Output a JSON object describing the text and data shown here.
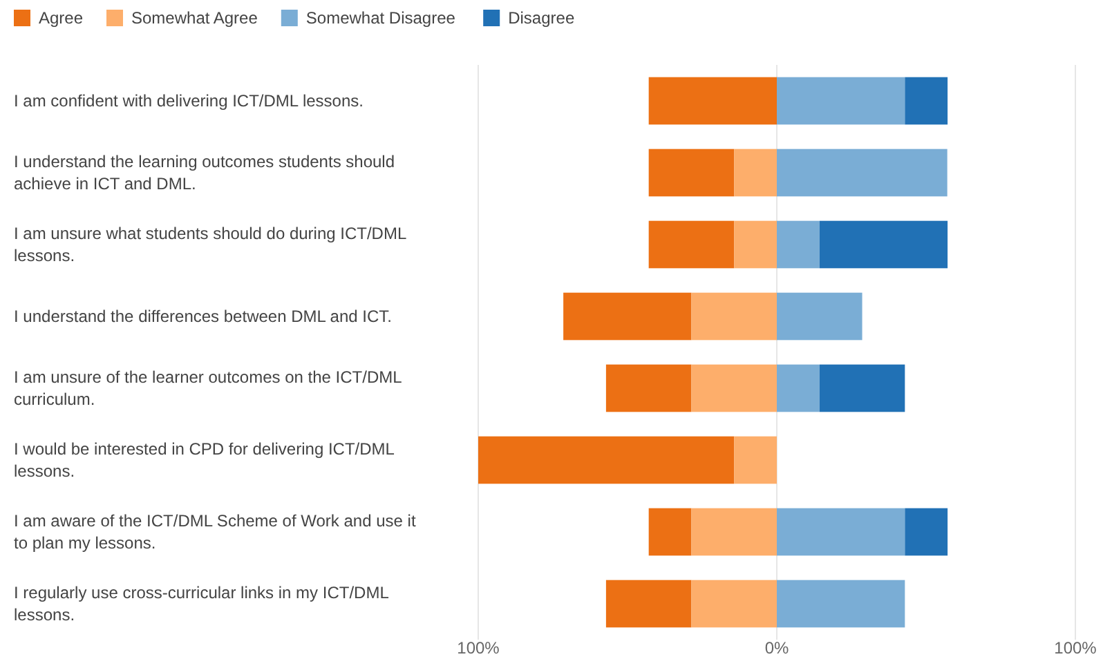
{
  "chart_data": {
    "type": "bar",
    "orientation": "horizontal",
    "categories": [
      "I am confident with delivering ICT/DML lessons.",
      "I understand the learning outcomes students should achieve in ICT and DML.",
      "I am unsure what students should do during ICT/DML lessons.",
      "I understand the differences between DML and ICT.",
      "I am unsure of the learner outcomes on the ICT/DML curriculum.",
      "I would be interested in CPD for delivering ICT/DML lessons.",
      "I am aware of the ICT/DML Scheme of Work and use it to plan my lessons.",
      "I regularly use cross-curricular links in my ICT/DML lessons."
    ],
    "series": [
      {
        "name": "Agree",
        "color": "#ec7014",
        "values": [
          42.9,
          28.6,
          28.6,
          42.9,
          28.6,
          85.7,
          14.3,
          28.6
        ],
        "base": [
          -42.9,
          -42.9,
          -42.9,
          -71.5,
          -57.2,
          -100,
          -42.9,
          -57.2
        ]
      },
      {
        "name": "Somewhat Agree",
        "color": "#fdae6b",
        "values": [
          null,
          14.3,
          14.3,
          28.6,
          28.6,
          14.3,
          28.6,
          28.6
        ],
        "base": [
          null,
          -14.3,
          -14.3,
          -28.6,
          -28.6,
          -14.3,
          -28.6,
          -28.6
        ]
      },
      {
        "name": "Somewhat Disagree",
        "color": "#7aadd5",
        "values": [
          42.9,
          57.1,
          14.3,
          28.6,
          14.3,
          null,
          42.9,
          42.9
        ],
        "base": [
          0,
          0,
          0,
          0,
          0,
          null,
          0,
          0
        ]
      },
      {
        "name": "Disagree",
        "color": "#2171b5",
        "values": [
          14.3,
          null,
          42.9,
          null,
          28.6,
          null,
          14.3,
          null
        ],
        "base": [
          42.9,
          null,
          14.3,
          null,
          14.3,
          null,
          42.9,
          null
        ]
      }
    ],
    "xlim": [
      -100,
      100
    ],
    "xticks": [
      {
        "value": -100,
        "label": "100%"
      },
      {
        "value": 0,
        "label": "0%"
      },
      {
        "value": 100,
        "label": "100%"
      }
    ],
    "grid": "x",
    "legend": "top left"
  }
}
